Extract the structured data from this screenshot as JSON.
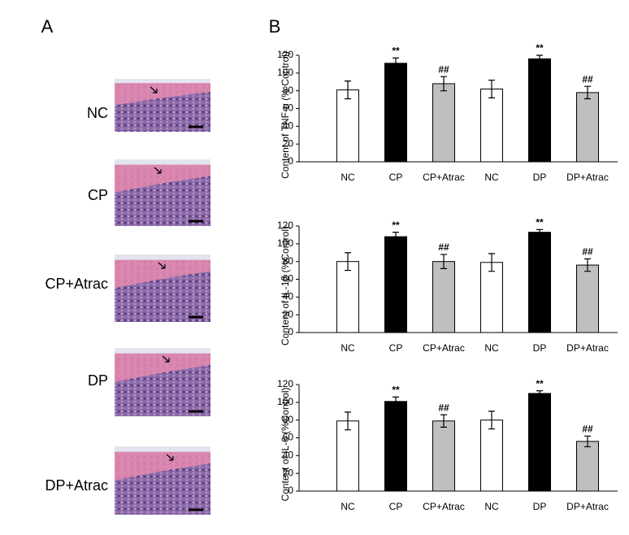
{
  "panel_a": {
    "label": "A",
    "rows": [
      "NC",
      "CP",
      "CP+Atrac",
      "DP",
      "DP+Atrac"
    ]
  },
  "panel_b": {
    "label": "B"
  },
  "chart_data": [
    {
      "type": "bar",
      "ylabel": "Content of TNF-α (% Control)",
      "categories": [
        "NC",
        "CP",
        "CP+Atrac",
        "NC",
        "DP",
        "DP+Atrac"
      ],
      "values": [
        81,
        111,
        88,
        82,
        116,
        78
      ],
      "errors": [
        10,
        6,
        8,
        10,
        4,
        7
      ],
      "annotations": [
        null,
        "**",
        "##",
        null,
        "**",
        "##"
      ],
      "colors": [
        "#ffffff",
        "#000000",
        "#bfbfbf",
        "#ffffff",
        "#000000",
        "#bfbfbf"
      ],
      "ylim": [
        0,
        120
      ],
      "yticks": [
        0,
        20,
        40,
        60,
        80,
        100,
        120
      ]
    },
    {
      "type": "bar",
      "ylabel": "Content of IL-1β (%Control)",
      "categories": [
        "NC",
        "CP",
        "CP+Atrac",
        "NC",
        "DP",
        "DP+Atrac"
      ],
      "values": [
        80,
        108,
        80,
        79,
        113,
        76
      ],
      "errors": [
        10,
        5,
        8,
        10,
        3,
        7
      ],
      "annotations": [
        null,
        "**",
        "##",
        null,
        "**",
        "##"
      ],
      "colors": [
        "#ffffff",
        "#000000",
        "#bfbfbf",
        "#ffffff",
        "#000000",
        "#bfbfbf"
      ],
      "ylim": [
        0,
        120
      ],
      "yticks": [
        0,
        20,
        40,
        60,
        80,
        100,
        120
      ]
    },
    {
      "type": "bar",
      "ylabel": "Content of IL-6 (%Control)",
      "categories": [
        "NC",
        "CP",
        "CP+Atrac",
        "NC",
        "DP",
        "DP+Atrac"
      ],
      "values": [
        79,
        101,
        79,
        80,
        110,
        56
      ],
      "errors": [
        10,
        5,
        7,
        10,
        3,
        6
      ],
      "annotations": [
        null,
        "**",
        "##",
        null,
        "**",
        "##"
      ],
      "colors": [
        "#ffffff",
        "#000000",
        "#bfbfbf",
        "#ffffff",
        "#000000",
        "#bfbfbf"
      ],
      "ylim": [
        0,
        120
      ],
      "yticks": [
        0,
        20,
        40,
        60,
        80,
        100,
        120
      ]
    }
  ]
}
